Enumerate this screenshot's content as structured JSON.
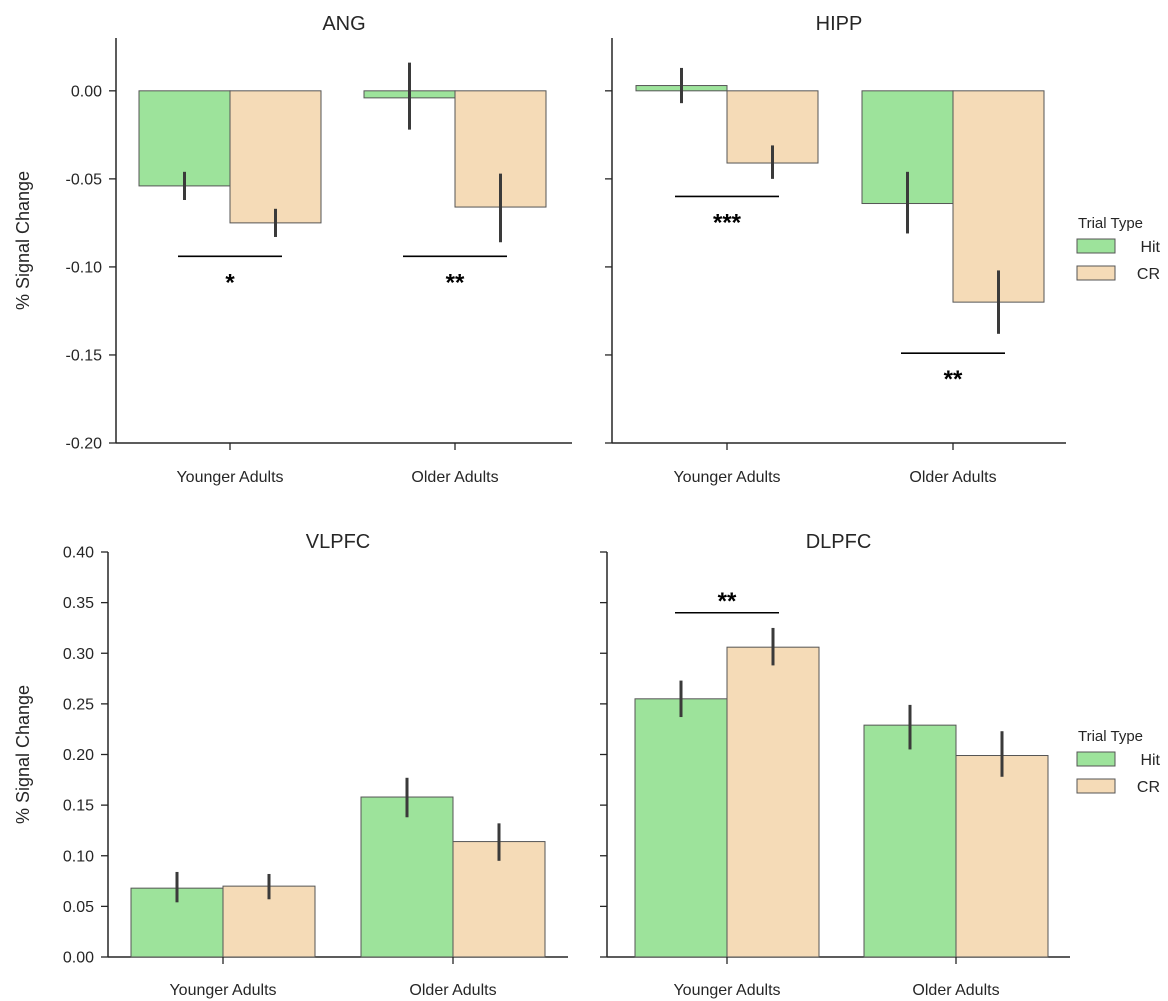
{
  "colors": {
    "Hit": "#9de39b",
    "CR": "#f5dbb7",
    "edge": "#555555",
    "err": "#3a3a3a",
    "axis": "#262626"
  },
  "legend": {
    "title": "Trial Type",
    "placement": "right"
  },
  "chart_data": [
    {
      "type": "bar",
      "title": "ANG",
      "ylabel": "% Signal Change",
      "categories": [
        "Younger Adults",
        "Older Adults"
      ],
      "ylim": [
        -0.2,
        0.03
      ],
      "yticks": [
        "0.00",
        "-0.05",
        "-0.10",
        "-0.15",
        "-0.20"
      ],
      "series": [
        {
          "name": "Hit",
          "values": [
            -0.054,
            -0.004
          ],
          "err": [
            [
              -0.062,
              -0.046
            ],
            [
              -0.022,
              0.016
            ]
          ]
        },
        {
          "name": "CR",
          "values": [
            -0.075,
            -0.066
          ],
          "err": [
            [
              -0.083,
              -0.067
            ],
            [
              -0.086,
              -0.047
            ]
          ]
        }
      ],
      "annotations": [
        {
          "category": "Younger Adults",
          "text": "*",
          "y": -0.094
        },
        {
          "category": "Older Adults",
          "text": "**",
          "y": -0.094
        }
      ]
    },
    {
      "type": "bar",
      "title": "HIPP",
      "ylabel": "",
      "categories": [
        "Younger Adults",
        "Older Adults"
      ],
      "ylim": [
        -0.2,
        0.03
      ],
      "yticks": [],
      "series": [
        {
          "name": "Hit",
          "values": [
            0.003,
            -0.064
          ],
          "err": [
            [
              -0.007,
              0.013
            ],
            [
              -0.081,
              -0.046
            ]
          ]
        },
        {
          "name": "CR",
          "values": [
            -0.041,
            -0.12
          ],
          "err": [
            [
              -0.05,
              -0.031
            ],
            [
              -0.138,
              -0.102
            ]
          ]
        }
      ],
      "annotations": [
        {
          "category": "Younger Adults",
          "text": "***",
          "y": -0.06
        },
        {
          "category": "Older Adults",
          "text": "**",
          "y": -0.149
        }
      ]
    },
    {
      "type": "bar",
      "title": "VLPFC",
      "ylabel": "% Signal Change",
      "categories": [
        "Younger Adults",
        "Older Adults"
      ],
      "ylim": [
        0,
        0.4
      ],
      "yticks": [
        "0.00",
        "0.05",
        "0.10",
        "0.15",
        "0.20",
        "0.25",
        "0.30",
        "0.35",
        "0.40"
      ],
      "series": [
        {
          "name": "Hit",
          "values": [
            0.068,
            0.158
          ],
          "err": [
            [
              0.054,
              0.084
            ],
            [
              0.138,
              0.177
            ]
          ]
        },
        {
          "name": "CR",
          "values": [
            0.07,
            0.114
          ],
          "err": [
            [
              0.057,
              0.082
            ],
            [
              0.095,
              0.132
            ]
          ]
        }
      ],
      "annotations": []
    },
    {
      "type": "bar",
      "title": "DLPFC",
      "ylabel": "",
      "categories": [
        "Younger Adults",
        "Older Adults"
      ],
      "ylim": [
        0,
        0.4
      ],
      "yticks": [],
      "series": [
        {
          "name": "Hit",
          "values": [
            0.255,
            0.229
          ],
          "err": [
            [
              0.237,
              0.273
            ],
            [
              0.205,
              0.249
            ]
          ]
        },
        {
          "name": "CR",
          "values": [
            0.306,
            0.199
          ],
          "err": [
            [
              0.288,
              0.325
            ],
            [
              0.178,
              0.223
            ]
          ]
        }
      ],
      "annotations": [
        {
          "category": "Younger Adults",
          "text": "**",
          "y": 0.34
        }
      ]
    }
  ]
}
